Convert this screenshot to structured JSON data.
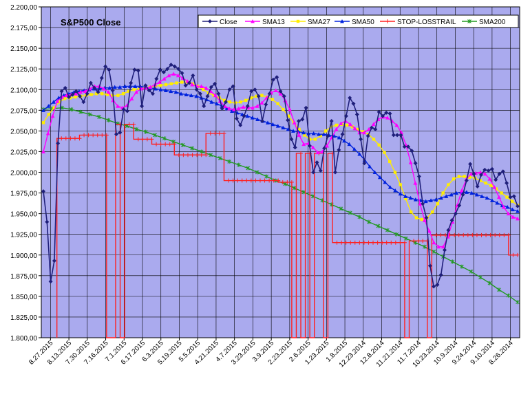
{
  "chart_data": {
    "type": "line",
    "title": "S&P500 Close",
    "x_order": "reverse-chronological (newest at left)",
    "ylim": [
      1800,
      2200
    ],
    "y_step": 25,
    "y_tick_labels": [
      "1.800,00",
      "1.825,00",
      "1.850,00",
      "1.875,00",
      "1.900,00",
      "1.925,00",
      "1.950,00",
      "1.975,00",
      "2.000,00",
      "2.025,00",
      "2.050,00",
      "2.075,00",
      "2.100,00",
      "2.125,00",
      "2.150,00",
      "2.175,00",
      "2.200,00"
    ],
    "x_tick_labels": [
      "8.27.2015",
      "8.13.2015",
      "7.30.2015",
      "7.16.2015",
      "7.1.2015",
      "6.17.2015",
      "6.3.2015",
      "5.19.2015",
      "5.5.2015",
      "4.21.2015",
      "4.7.2015",
      "3.23.2015",
      "3.9.2015",
      "2.23.2015",
      "2.6.2015",
      "1.23.2015",
      "1.8.2015",
      "12.23.2014",
      "12.8.2014",
      "11.21.2014",
      "11.7.2014",
      "10.23.2014",
      "10.9.2014",
      "9.24.2014",
      "9.10.2014",
      "8.26.2014"
    ],
    "plot_background": "#aaaaee",
    "gridlines": true,
    "legend_position": "top-right",
    "series": [
      {
        "name": "Close",
        "color": "#1f1f7a",
        "marker": "diamond",
        "values": [
          1977,
          1940,
          1868,
          1893,
          2035,
          2098,
          2102,
          2091,
          2094,
          2098,
          2092,
          2085,
          2095,
          2108,
          2102,
          2097,
          2114,
          2128,
          2124,
          2099,
          2046,
          2048,
          2076,
          2074,
          2108,
          2124,
          2123,
          2080,
          2105,
          2099,
          2095,
          2113,
          2124,
          2121,
          2125,
          2130,
          2128,
          2125,
          2120,
          2105,
          2108,
          2117,
          2100,
          2095,
          2080,
          2092,
          2103,
          2107,
          2095,
          2077,
          2085,
          2100,
          2104,
          2065,
          2057,
          2068,
          2080,
          2098,
          2100,
          2092,
          2062,
          2082,
          2095,
          2112,
          2115,
          2098,
          2092,
          2063,
          2040,
          2030,
          2062,
          2064,
          2078,
          2032,
          2000,
          2012,
          2002,
          2029,
          2044,
          2062,
          2000,
          2027,
          2046,
          2068,
          2090,
          2083,
          2070,
          2040,
          2011,
          2044,
          2054,
          2052,
          2073,
          2068,
          2072,
          2071,
          2045,
          2045,
          2045,
          2031,
          2031,
          2026,
          2011,
          1995,
          1962,
          1945,
          1887,
          1862,
          1864,
          1876,
          1906,
          1930,
          1942,
          1950,
          1960,
          1973,
          1990,
          2010,
          1998,
          1983,
          1997,
          2003,
          2002,
          2004,
          1991,
          1998,
          2001,
          1987,
          1970,
          1971,
          1959
        ]
      },
      {
        "name": "SMA13",
        "color": "#ff00ff",
        "marker": "triangle",
        "values": [
          2025,
          2047,
          2068,
          2086,
          2091,
          2093,
          2094,
          2095,
          2097,
          2098,
          2101,
          2104,
          2104,
          2101,
          2097,
          2087,
          2080,
          2078,
          2081,
          2089,
          2097,
          2101,
          2102,
          2103,
          2106,
          2109,
          2113,
          2117,
          2119,
          2117,
          2114,
          2110,
          2106,
          2104,
          2104,
          2102,
          2098,
          2093,
          2086,
          2080,
          2077,
          2076,
          2077,
          2079,
          2078,
          2078,
          2080,
          2084,
          2090,
          2096,
          2099,
          2095,
          2087,
          2076,
          2060,
          2045,
          2034,
          2035,
          2030,
          2024,
          2025,
          2032,
          2042,
          2052,
          2059,
          2062,
          2058,
          2053,
          2048,
          2048,
          2052,
          2058,
          2064,
          2067,
          2066,
          2062,
          2057,
          2048,
          2033,
          2012,
          1987,
          1962,
          1942,
          1929,
          1915,
          1910,
          1910,
          1922,
          1940,
          1960,
          1978,
          1992,
          1998,
          1999,
          2000,
          1998,
          1992,
          1982,
          1970,
          1958,
          1950,
          1946,
          1944
        ]
      },
      {
        "name": "SMA27",
        "color": "#ffee00",
        "marker": "square",
        "values": [
          2060,
          2070,
          2078,
          2085,
          2089,
          2090,
          2091,
          2092,
          2093,
          2094,
          2095,
          2095,
          2094,
          2093,
          2093,
          2095,
          2098,
          2100,
          2101,
          2102,
          2103,
          2104,
          2105,
          2106,
          2107,
          2108,
          2109,
          2109,
          2107,
          2104,
          2100,
          2096,
          2093,
          2090,
          2087,
          2085,
          2084,
          2085,
          2087,
          2090,
          2092,
          2093,
          2091,
          2088,
          2083,
          2076,
          2068,
          2060,
          2052,
          2045,
          2040,
          2040,
          2044,
          2050,
          2055,
          2057,
          2058,
          2057,
          2055,
          2052,
          2049,
          2046,
          2040,
          2033,
          2024,
          2013,
          2000,
          1985,
          1968,
          1952,
          1945,
          1943,
          1945,
          1952,
          1962,
          1975,
          1985,
          1992,
          1995,
          1995,
          1994,
          1993,
          1990,
          1987,
          1984,
          1980,
          1975,
          1970,
          1965,
          1960
        ]
      },
      {
        "name": "SMA50",
        "color": "#0022dd",
        "marker": "triangle",
        "values": [
          2075,
          2080,
          2085,
          2090,
          2093,
          2095,
          2097,
          2098,
          2099,
          2100,
          2101,
          2101,
          2102,
          2102,
          2103,
          2103,
          2104,
          2104,
          2104,
          2104,
          2103,
          2102,
          2101,
          2100,
          2099,
          2098,
          2097,
          2095,
          2094,
          2093,
          2092,
          2090,
          2088,
          2085,
          2083,
          2080,
          2077,
          2074,
          2072,
          2070,
          2068,
          2066,
          2064,
          2062,
          2060,
          2058,
          2056,
          2054,
          2052,
          2050,
          2049,
          2048,
          2047,
          2047,
          2046,
          2046,
          2045,
          2044,
          2042,
          2038,
          2034,
          2028,
          2022,
          2015,
          2007,
          2000,
          1994,
          1988,
          1982,
          1978,
          1974,
          1971,
          1969,
          1967,
          1966,
          1965,
          1966,
          1967,
          1969,
          1971,
          1973,
          1975,
          1976,
          1976,
          1975,
          1973,
          1971,
          1969,
          1966,
          1963,
          1960,
          1958,
          1955,
          1953
        ]
      },
      {
        "name": "STOP-LOSSTRAIL",
        "color": "#ff2020",
        "marker": "plus",
        "drawdown_mode": "vertical-drops-to-axis",
        "values": [
          null,
          null,
          null,
          1800,
          2041,
          2041,
          2041,
          2041,
          2041,
          2045,
          2045,
          2045,
          2045,
          2045,
          2045,
          1800,
          1800,
          2058,
          1800,
          2058,
          2058,
          2040,
          2040,
          2040,
          2040,
          2034,
          2034,
          2034,
          2034,
          2034,
          2021,
          2021,
          2021,
          2021,
          2021,
          2021,
          2021,
          2047,
          2047,
          2047,
          2047,
          1990,
          1990,
          1990,
          1990,
          1990,
          1990,
          1990,
          1990,
          1990,
          1990,
          1990,
          1990,
          1988,
          1988,
          1988,
          1800,
          2023,
          1800,
          2023,
          1800,
          2023,
          2023,
          1800,
          2023,
          1915,
          1915,
          1915,
          1915,
          1915,
          1915,
          1915,
          1915,
          1915,
          1915,
          1915,
          1915,
          1915,
          1915,
          1915,
          1915,
          1800,
          1917,
          1917,
          1917,
          1917,
          1800,
          1924,
          1924,
          1924,
          1924,
          1924,
          1924,
          1924,
          1924,
          1924,
          1924,
          1924,
          1924,
          1924,
          1924,
          1924,
          1924,
          1924,
          1900,
          1900
        ]
      },
      {
        "name": "SMA200",
        "color": "#229922",
        "marker": "asterisk",
        "values": [
          2076,
          2077,
          2078,
          2076,
          2073,
          2070,
          2067,
          2063,
          2059,
          2056,
          2052,
          2049,
          2045,
          2041,
          2037,
          2033,
          2029,
          2025,
          2021,
          2017,
          2013,
          2009,
          2005,
          2000,
          1995,
          1990,
          1986,
          1981,
          1976,
          1971,
          1966,
          1961,
          1956,
          1951,
          1946,
          1940,
          1935,
          1930,
          1925,
          1920,
          1915,
          1910,
          1904,
          1898,
          1892,
          1886,
          1880,
          1873,
          1866,
          1858,
          1851,
          1843
        ]
      }
    ]
  }
}
